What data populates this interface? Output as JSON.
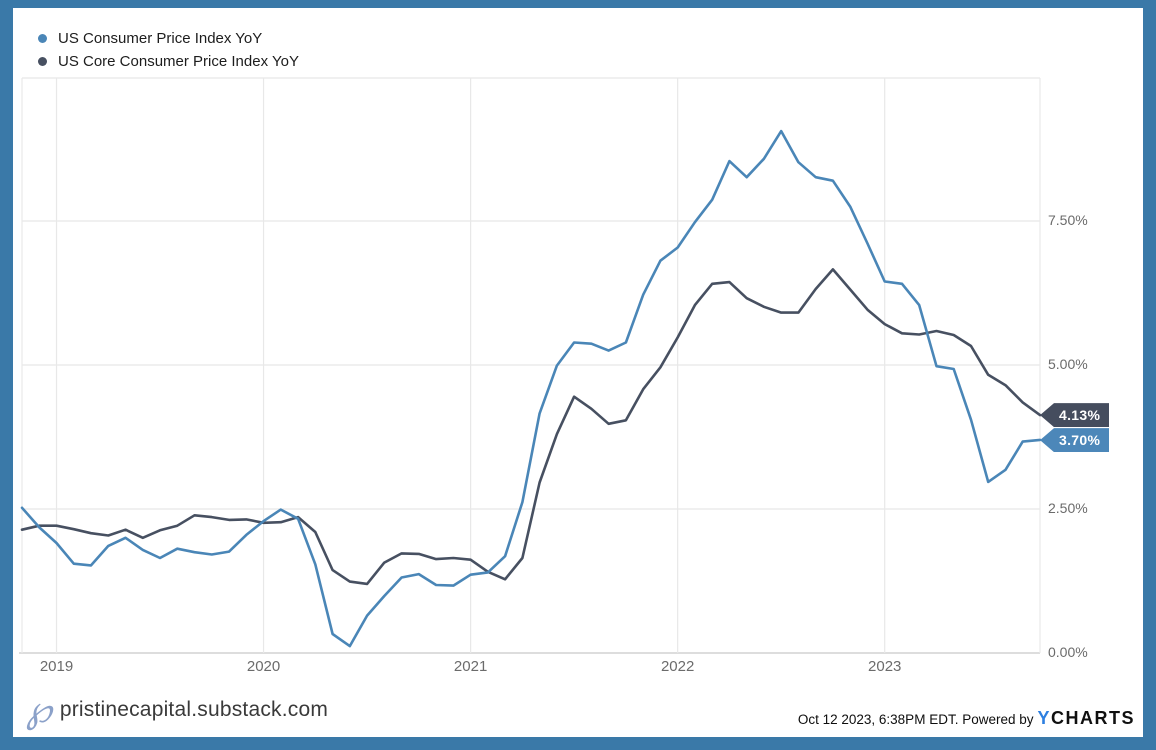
{
  "legend": {
    "items": [
      {
        "label": "US Consumer Price Index YoY",
        "color": "#4A86B7"
      },
      {
        "label": "US Core Consumer Price Index YoY",
        "color": "#475061"
      }
    ]
  },
  "chart_data": {
    "type": "line",
    "title": "",
    "xlabel": "",
    "ylabel": "",
    "ylim": [
      0,
      9.9
    ],
    "grid": true,
    "legend_position": "top-left",
    "y_ticks": [
      7.5,
      5.0,
      2.5,
      0.0
    ],
    "y_tick_labels": [
      "7.50%",
      "5.00%",
      "2.50%",
      "0.00%"
    ],
    "x_tick_labels": [
      "2019",
      "2020",
      "2021",
      "2022",
      "2023"
    ],
    "x": [
      "2018-10",
      "2018-11",
      "2018-12",
      "2019-01",
      "2019-02",
      "2019-03",
      "2019-04",
      "2019-05",
      "2019-06",
      "2019-07",
      "2019-08",
      "2019-09",
      "2019-10",
      "2019-11",
      "2019-12",
      "2020-01",
      "2020-02",
      "2020-03",
      "2020-04",
      "2020-05",
      "2020-06",
      "2020-07",
      "2020-08",
      "2020-09",
      "2020-10",
      "2020-11",
      "2020-12",
      "2021-01",
      "2021-02",
      "2021-03",
      "2021-04",
      "2021-05",
      "2021-06",
      "2021-07",
      "2021-08",
      "2021-09",
      "2021-10",
      "2021-11",
      "2021-12",
      "2022-01",
      "2022-02",
      "2022-03",
      "2022-04",
      "2022-05",
      "2022-06",
      "2022-07",
      "2022-08",
      "2022-09",
      "2022-10",
      "2022-11",
      "2022-12",
      "2023-01",
      "2023-02",
      "2023-03",
      "2023-04",
      "2023-05",
      "2023-06",
      "2023-07",
      "2023-08",
      "2023-09"
    ],
    "series": [
      {
        "name": "US Consumer Price Index YoY",
        "color": "#4A86B7",
        "last_label": "3.70%",
        "values": [
          2.52,
          2.18,
          1.91,
          1.55,
          1.52,
          1.86,
          2.0,
          1.79,
          1.65,
          1.81,
          1.75,
          1.71,
          1.76,
          2.05,
          2.29,
          2.49,
          2.33,
          1.54,
          0.33,
          0.12,
          0.65,
          0.99,
          1.31,
          1.37,
          1.18,
          1.17,
          1.36,
          1.4,
          1.68,
          2.62,
          4.16,
          4.99,
          5.39,
          5.37,
          5.25,
          5.39,
          6.22,
          6.81,
          7.04,
          7.48,
          7.87,
          8.54,
          8.26,
          8.58,
          9.06,
          8.52,
          8.26,
          8.2,
          7.75,
          7.11,
          6.45,
          6.41,
          6.04,
          4.98,
          4.93,
          4.05,
          2.97,
          3.18,
          3.67,
          3.7
        ]
      },
      {
        "name": "US Core Consumer Price Index YoY",
        "color": "#475061",
        "last_label": "4.13%",
        "values": [
          2.14,
          2.21,
          2.21,
          2.15,
          2.08,
          2.04,
          2.14,
          2.0,
          2.13,
          2.21,
          2.39,
          2.36,
          2.31,
          2.32,
          2.26,
          2.27,
          2.36,
          2.1,
          1.44,
          1.24,
          1.2,
          1.57,
          1.73,
          1.72,
          1.63,
          1.65,
          1.62,
          1.41,
          1.28,
          1.65,
          2.96,
          3.8,
          4.45,
          4.24,
          3.98,
          4.04,
          4.58,
          4.96,
          5.48,
          6.04,
          6.41,
          6.44,
          6.16,
          6.01,
          5.91,
          5.91,
          6.32,
          6.66,
          6.31,
          5.96,
          5.71,
          5.55,
          5.53,
          5.59,
          5.52,
          5.33,
          4.83,
          4.65,
          4.35,
          4.13
        ]
      }
    ],
    "colors": {
      "frame_border": "#3A79A8",
      "gridline": "#E8E8E8",
      "axis_line": "#D2D2D2",
      "tick_text": "#6B6B6B",
      "tag_cpi_bg": "#4C87B9",
      "tag_core_bg": "#454D5E"
    }
  },
  "footer": {
    "logo_glyph": "℘",
    "site": "pristinecapital.substack.com",
    "timestamp": "Oct 12 2023, 6:38PM EDT. Powered by",
    "brand_y": "Y",
    "brand_rest": "CHARTS"
  }
}
